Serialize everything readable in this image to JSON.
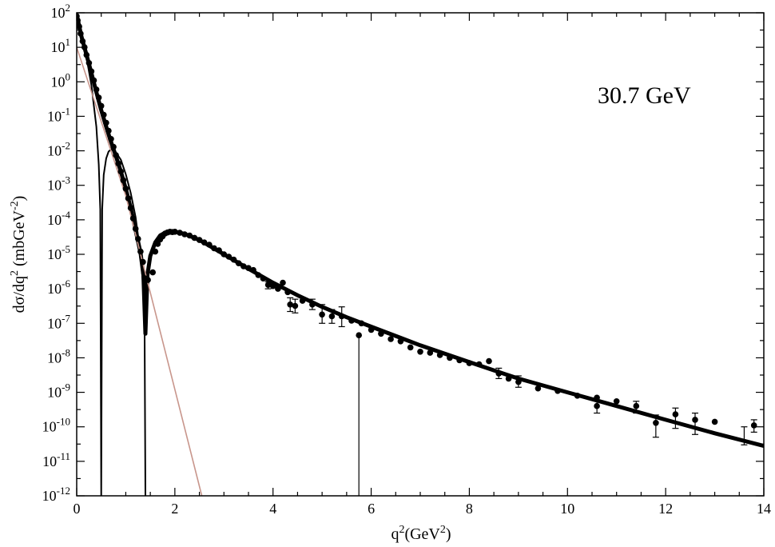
{
  "chart_data": {
    "type": "scatter",
    "annotation": "30.7 GeV",
    "xlabel": {
      "base": "q",
      "sup1": "2",
      "mid": "(GeV",
      "sup2": "2",
      "end": ")"
    },
    "ylabel": {
      "base": "dσ/dq",
      "sup1": "2",
      "mid": " (mbGeV",
      "sup2": "-2",
      "end": ")"
    },
    "xlim": [
      0,
      14
    ],
    "ylim_log10": [
      -12,
      2
    ],
    "y_scale": "log",
    "x_ticks": [
      "0",
      "2",
      "4",
      "6",
      "8",
      "10",
      "12",
      "14"
    ],
    "y_tick_exponents": [
      "2",
      "1",
      "0",
      "-1",
      "-2",
      "-3",
      "-4",
      "-5",
      "-6",
      "-7",
      "-8",
      "-9",
      "-10",
      "-11",
      "-12"
    ],
    "y_tick_base": "10",
    "grid": false,
    "colors": {
      "data": "#000000",
      "model": "#000000",
      "exponential": "#c8968c"
    },
    "series": [
      {
        "style": "points",
        "points": [
          [
            0.0,
            80
          ],
          [
            0.02,
            60
          ],
          [
            0.05,
            40
          ],
          [
            0.08,
            25
          ],
          [
            0.12,
            15
          ],
          [
            0.16,
            10
          ],
          [
            0.2,
            6
          ],
          [
            0.25,
            3.5
          ],
          [
            0.3,
            2
          ],
          [
            0.35,
            1.1
          ],
          [
            0.4,
            0.6
          ],
          [
            0.45,
            0.35
          ],
          [
            0.5,
            0.2
          ],
          [
            0.55,
            0.11
          ],
          [
            0.6,
            0.065
          ],
          [
            0.65,
            0.038
          ],
          [
            0.7,
            0.022
          ],
          [
            0.75,
            0.013
          ],
          [
            0.8,
            0.0075
          ],
          [
            0.85,
            0.0043
          ],
          [
            0.9,
            0.0025
          ],
          [
            0.95,
            0.0014
          ],
          [
            1.0,
            0.0008
          ],
          [
            1.05,
            0.00042
          ],
          [
            1.1,
            0.00022
          ],
          [
            1.15,
            0.00011
          ],
          [
            1.2,
            5.5e-05
          ],
          [
            1.25,
            2.8e-05
          ],
          [
            1.3,
            1.2e-05
          ],
          [
            1.35,
            6e-06
          ],
          [
            1.4,
            2e-06
          ],
          [
            1.45,
            1.8e-06
          ],
          [
            1.55,
            3e-06
          ],
          [
            1.6,
            1.2e-05
          ],
          [
            1.65,
            2e-05
          ],
          [
            1.7,
            2.7e-05
          ],
          [
            1.75,
            3.3e-05
          ],
          [
            1.8,
            4e-05
          ],
          [
            1.85,
            4.3e-05
          ],
          [
            1.9,
            4.5e-05
          ],
          [
            1.95,
            4.4e-05
          ],
          [
            2.0,
            4.5e-05
          ],
          [
            2.1,
            4.2e-05
          ],
          [
            2.2,
            3.8e-05
          ],
          [
            2.3,
            3.5e-05
          ],
          [
            2.4,
            3e-05
          ],
          [
            2.5,
            2.6e-05
          ],
          [
            2.6,
            2.2e-05
          ],
          [
            2.7,
            1.9e-05
          ],
          [
            2.8,
            1.5e-05
          ],
          [
            2.9,
            1.3e-05
          ],
          [
            3.0,
            1e-05
          ],
          [
            3.1,
            8.5e-06
          ],
          [
            3.2,
            7e-06
          ],
          [
            3.3,
            5.5e-06
          ],
          [
            3.4,
            4.5e-06
          ],
          [
            3.5,
            4e-06
          ],
          [
            3.6,
            3.5e-06
          ],
          [
            3.7,
            2.5e-06
          ],
          [
            3.8,
            2e-06
          ],
          [
            3.9,
            1.3e-06
          ],
          [
            4.0,
            1.2e-06
          ],
          [
            4.1,
            1e-06
          ],
          [
            4.2,
            1.5e-06
          ],
          [
            4.3,
            8e-07
          ],
          [
            4.35,
            3.5e-07
          ],
          [
            4.45,
            3.2e-07
          ],
          [
            4.6,
            4.5e-07
          ],
          [
            4.8,
            3.5e-07
          ],
          [
            5.0,
            1.8e-07
          ],
          [
            5.2,
            1.6e-07
          ],
          [
            5.4,
            1.6e-07
          ],
          [
            5.6,
            1.2e-07
          ],
          [
            5.75,
            4.5e-08
          ],
          [
            5.8,
            1e-07
          ],
          [
            6.0,
            6.5e-08
          ],
          [
            6.2,
            5e-08
          ],
          [
            6.4,
            3.5e-08
          ],
          [
            6.6,
            3e-08
          ],
          [
            6.8,
            2e-08
          ],
          [
            7.0,
            1.5e-08
          ],
          [
            7.2,
            1.4e-08
          ],
          [
            7.4,
            1.2e-08
          ],
          [
            7.6,
            1e-08
          ],
          [
            7.8,
            8.5e-09
          ],
          [
            8.0,
            7e-09
          ],
          [
            8.2,
            6.5e-09
          ],
          [
            8.4,
            8e-09
          ],
          [
            8.6,
            3.5e-09
          ],
          [
            8.8,
            2.5e-09
          ],
          [
            9.0,
            2e-09
          ],
          [
            9.4,
            1.3e-09
          ],
          [
            9.8,
            1.1e-09
          ],
          [
            10.2,
            8e-10
          ],
          [
            10.6,
            4e-10
          ],
          [
            10.6,
            7e-10
          ],
          [
            11.0,
            5.5e-10
          ],
          [
            11.4,
            4e-10
          ],
          [
            11.8,
            1.3e-10
          ],
          [
            12.2,
            2.3e-10
          ],
          [
            12.6,
            1.6e-10
          ],
          [
            13.0,
            1.4e-10
          ],
          [
            13.8,
            1.1e-10
          ]
        ],
        "error_bars": [
          [
            3.9,
            1e-06,
            1.6e-06
          ],
          [
            4.35,
            2.2e-07,
            5.5e-07
          ],
          [
            4.45,
            2e-07,
            5e-07
          ],
          [
            4.8,
            2.5e-07,
            5e-07
          ],
          [
            5.0,
            1e-07,
            3.5e-07
          ],
          [
            5.2,
            1e-07,
            2.5e-07
          ],
          [
            5.4,
            8e-08,
            3e-07
          ],
          [
            8.6,
            2.5e-09,
            5e-09
          ],
          [
            9.0,
            1.4e-09,
            3e-09
          ],
          [
            10.6,
            2.5e-10,
            6e-10
          ],
          [
            11.4,
            2.5e-10,
            5.5e-10
          ],
          [
            11.8,
            5e-11,
            2.2e-10
          ],
          [
            12.2,
            9e-11,
            3.5e-10
          ],
          [
            12.6,
            6e-11,
            2.5e-10
          ],
          [
            13.6,
            3e-11,
            1e-10
          ],
          [
            13.8,
            7e-11,
            1.6e-10
          ]
        ]
      },
      {
        "style": "band",
        "points": [
          [
            0.0,
            90
          ],
          [
            0.1,
            20
          ],
          [
            0.2,
            6
          ],
          [
            0.3,
            1.8
          ],
          [
            0.4,
            0.5
          ],
          [
            0.5,
            0.15
          ],
          [
            0.6,
            0.05
          ],
          [
            0.7,
            0.018
          ],
          [
            0.8,
            0.007
          ],
          [
            0.9,
            0.0025
          ],
          [
            1.0,
            0.0008
          ],
          [
            1.1,
            0.00022
          ],
          [
            1.2,
            5e-05
          ],
          [
            1.3,
            1.1e-05
          ],
          [
            1.36,
            2.5e-06
          ],
          [
            1.4,
            5e-08
          ],
          [
            1.44,
            2.5e-06
          ],
          [
            1.5,
            9e-06
          ],
          [
            1.6,
            2.2e-05
          ],
          [
            1.7,
            3.5e-05
          ],
          [
            1.8,
            4.2e-05
          ],
          [
            1.9,
            4.6e-05
          ],
          [
            2.0,
            4.5e-05
          ],
          [
            2.2,
            3.9e-05
          ],
          [
            2.5,
            2.6e-05
          ],
          [
            3.0,
            1e-05
          ],
          [
            3.5,
            3.8e-06
          ],
          [
            4.0,
            1.5e-06
          ],
          [
            4.5,
            6.5e-07
          ],
          [
            5.0,
            3e-07
          ],
          [
            5.5,
            1.5e-07
          ],
          [
            6.0,
            8e-08
          ],
          [
            7.0,
            2.3e-08
          ],
          [
            8.0,
            7.5e-09
          ],
          [
            9.0,
            2.5e-09
          ],
          [
            10.0,
            1e-09
          ],
          [
            11.0,
            4e-10
          ],
          [
            12.0,
            1.6e-10
          ],
          [
            13.0,
            6.5e-11
          ],
          [
            14.0,
            2.8e-11
          ]
        ]
      },
      {
        "style": "line",
        "points": [
          [
            0.0,
            60
          ],
          [
            0.1,
            20
          ],
          [
            0.2,
            5
          ],
          [
            0.3,
            0.8
          ],
          [
            0.4,
            0.05
          ],
          [
            0.45,
            0.004
          ],
          [
            0.48,
            0.0002
          ],
          [
            0.5,
            1e-12
          ],
          [
            0.52,
            0.0002
          ],
          [
            0.55,
            0.002
          ],
          [
            0.6,
            0.006
          ],
          [
            0.65,
            0.0095
          ],
          [
            0.7,
            0.011
          ],
          [
            0.8,
            0.009
          ],
          [
            0.9,
            0.0055
          ],
          [
            1.0,
            0.0021
          ],
          [
            1.1,
            0.0006
          ],
          [
            1.2,
            0.00012
          ],
          [
            1.3,
            1e-05
          ],
          [
            1.38,
            4e-07
          ],
          [
            1.4,
            1e-12
          ]
        ]
      },
      {
        "style": "thin",
        "points": [
          [
            0.0,
            10
          ],
          [
            1.0,
            0.0005
          ],
          [
            2.55,
            1e-12
          ]
        ]
      },
      {
        "style": "thin-black",
        "points": [
          [
            5.75,
            4.5e-08
          ],
          [
            5.75,
            1e-12
          ]
        ]
      }
    ]
  }
}
